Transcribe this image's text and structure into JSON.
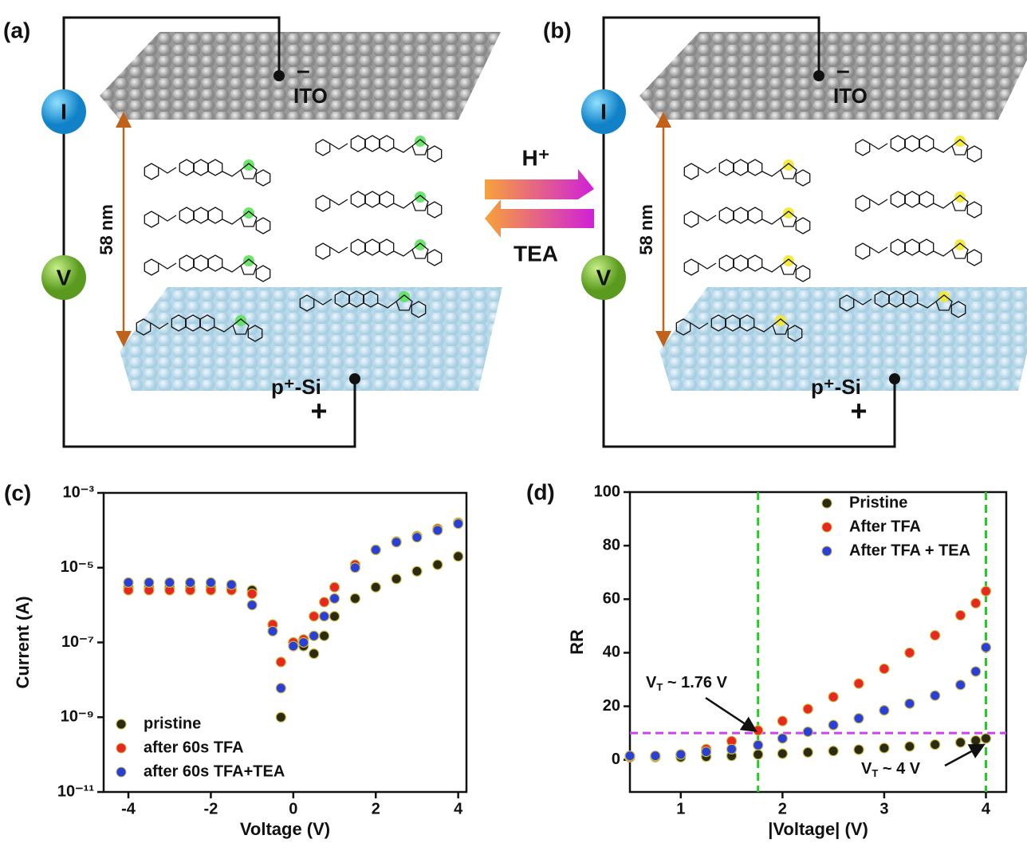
{
  "schematic": {
    "panels": [
      {
        "label": "(a)",
        "electrode_top": "ITO",
        "top_sign": "–",
        "electrode_bottom": "p⁺-Si",
        "bottom_sign": "+",
        "current": "I",
        "voltage": "V",
        "thickness": "58 nm"
      },
      {
        "label": "(b)",
        "electrode_top": "ITO",
        "top_sign": "–",
        "electrode_bottom": "p⁺-Si",
        "bottom_sign": "+",
        "current": "I",
        "voltage": "V",
        "thickness": "58 nm"
      }
    ],
    "arrows": {
      "forward": "H⁺",
      "backward": "TEA"
    }
  },
  "chart_data": [
    {
      "type": "scatter",
      "panel_label": "(c)",
      "xlabel": "Voltage (V)",
      "ylabel": "Current (A)",
      "log_y": true,
      "xlim": [
        -4.6,
        4.2
      ],
      "xticks": [
        -4,
        -2,
        0,
        2,
        4
      ],
      "ylim": [
        1e-11,
        0.001
      ],
      "yticks": [
        {
          "value": 0.001,
          "label": "10⁻³"
        },
        {
          "value": 1e-05,
          "label": "10⁻⁵"
        },
        {
          "value": 1e-07,
          "label": "10⁻⁷"
        },
        {
          "value": 1e-09,
          "label": "10⁻⁹"
        },
        {
          "value": 1e-11,
          "label": "10⁻¹¹"
        }
      ],
      "legend": "lower-left",
      "x": [
        -4,
        -3.5,
        -3,
        -2.5,
        -2,
        -1.5,
        -1,
        -0.5,
        -0.3,
        0,
        0.25,
        0.5,
        0.75,
        1,
        1.5,
        2,
        2.5,
        3,
        3.5,
        4
      ],
      "series": [
        {
          "name": "pristine",
          "color": "#2b2b12",
          "values": [
            3e-06,
            3e-06,
            3e-06,
            3e-06,
            3e-06,
            3e-06,
            2.5e-06,
            3e-07,
            1e-09,
            1e-07,
            8e-08,
            5e-08,
            1.5e-07,
            5e-07,
            1.5e-06,
            3e-06,
            5e-06,
            8e-06,
            1.2e-05,
            2e-05
          ]
        },
        {
          "name": "after 60s TFA",
          "color": "#e8281e",
          "values": [
            2.5e-06,
            2.5e-06,
            2.5e-06,
            2.5e-06,
            2.5e-06,
            2.5e-06,
            2e-06,
            3e-07,
            3e-08,
            1e-07,
            1.2e-07,
            5e-07,
            1.2e-06,
            3e-06,
            1.2e-05,
            3e-05,
            5e-05,
            7e-05,
            0.00011,
            0.00016
          ]
        },
        {
          "name": "after 60s TFA+TEA",
          "color": "#2a3fd8",
          "values": [
            4e-06,
            4e-06,
            4e-06,
            4e-06,
            4e-06,
            3.5e-06,
            1e-06,
            2e-07,
            6e-09,
            8e-08,
            1e-07,
            1.5e-07,
            5e-07,
            1.5e-06,
            1e-05,
            3e-05,
            4.8e-05,
            6.5e-05,
            0.0001,
            0.00015
          ]
        }
      ]
    },
    {
      "type": "scatter",
      "panel_label": "(d)",
      "xlabel": "|Voltage| (V)",
      "ylabel": "RR",
      "log_y": false,
      "xlim": [
        0.5,
        4.2
      ],
      "xticks": [
        1,
        2,
        3,
        4
      ],
      "ylim": [
        -12,
        100
      ],
      "yticks": [
        0,
        20,
        40,
        60,
        80,
        100
      ],
      "legend": "upper-right",
      "x": [
        0.5,
        0.75,
        1,
        1.25,
        1.5,
        1.76,
        2,
        2.25,
        2.5,
        2.75,
        3,
        3.25,
        3.5,
        3.75,
        3.9,
        4
      ],
      "series": [
        {
          "name": "Pristine",
          "color": "#2b2b12",
          "values": [
            1,
            1,
            1,
            1.2,
            1.5,
            2,
            2.3,
            2.8,
            3.3,
            3.8,
            4.4,
            5,
            5.7,
            6.5,
            7.2,
            8
          ]
        },
        {
          "name": "After TFA",
          "color": "#e8281e",
          "values": [
            1,
            1.2,
            2,
            4,
            7,
            11,
            14.5,
            19,
            23.5,
            28.5,
            34,
            40,
            46.5,
            54,
            58.5,
            63
          ]
        },
        {
          "name": "After TFA + TEA",
          "color": "#2a3fd8",
          "values": [
            1.5,
            1.5,
            2,
            3,
            4,
            5.5,
            8,
            10.5,
            13,
            15.5,
            18.5,
            21,
            24,
            28,
            33,
            42
          ]
        }
      ],
      "vlines": [
        1.76,
        4
      ],
      "vline_color": "#22cc22",
      "hlines": [
        10
      ],
      "hline_color": "#cc44ee",
      "annotations": [
        {
          "text": "V",
          "subscript": "T",
          "suffix": " ~ 1.76 V"
        },
        {
          "text": "V",
          "subscript": "T",
          "suffix": " ~ 4 V"
        }
      ]
    }
  ]
}
